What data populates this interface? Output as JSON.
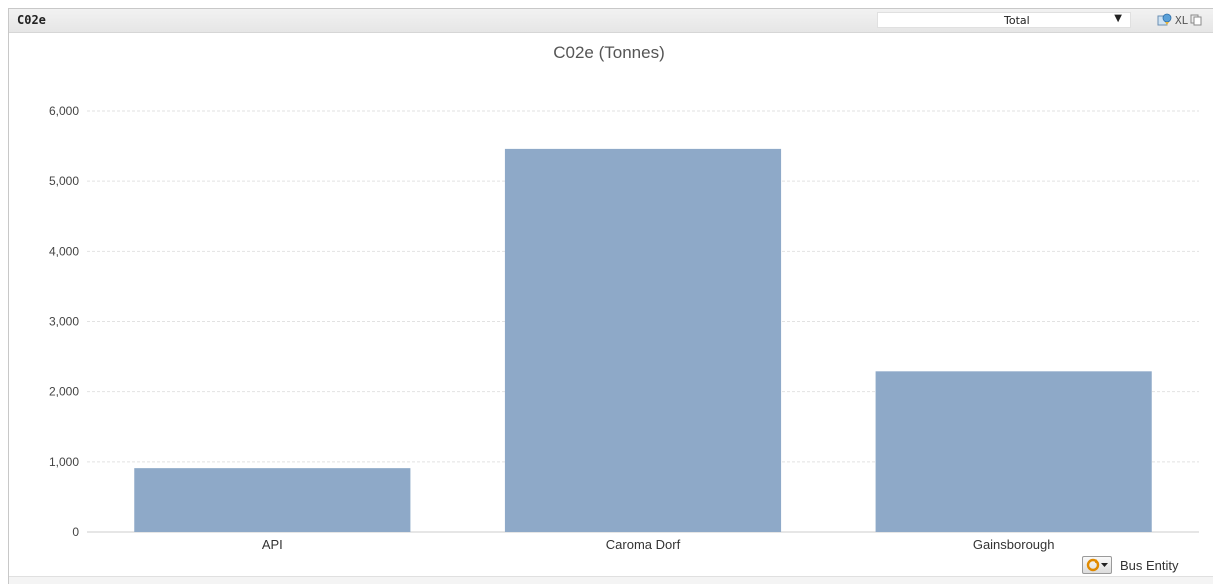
{
  "object": {
    "caption": "C02e",
    "selector_value": "Total",
    "xl_label": "XL",
    "icons": [
      "send-to-excel-icon",
      "copy-icon"
    ]
  },
  "dimension_label": "Bus Entity",
  "colors": {
    "bar": "#8ea9c8",
    "grid": "#e2e2e2",
    "axis": "#cccccc",
    "caption_bg": "#eaeaea"
  },
  "chart_data": {
    "type": "bar",
    "title": "C02e (Tonnes)",
    "categories": [
      "API",
      "Caroma Dorf",
      "Gainsborough"
    ],
    "values": [
      910,
      5460,
      2290
    ],
    "xlabel": "",
    "ylabel": "",
    "ylim": [
      0,
      6000
    ],
    "yticks": [
      0,
      1000,
      2000,
      3000,
      4000,
      5000,
      6000
    ],
    "ytick_labels": [
      "0",
      "1,000",
      "2,000",
      "3,000",
      "4,000",
      "5,000",
      "6,000"
    ],
    "grid": true,
    "legend": "none"
  }
}
